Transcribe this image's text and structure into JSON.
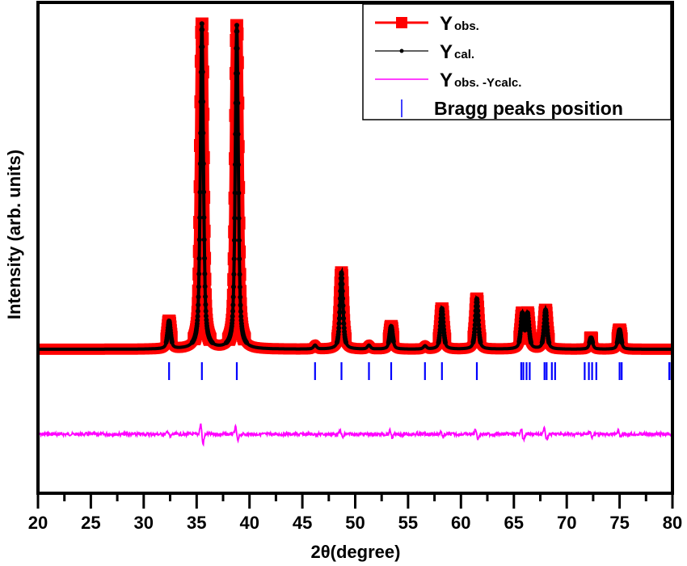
{
  "chart_data": {
    "type": "line",
    "title": "",
    "xlabel": "2θ(degree)",
    "ylabel": "Intensity (arb. units)",
    "xlim": [
      20,
      80
    ],
    "ylim": [
      0,
      1
    ],
    "x_ticks": [
      20,
      25,
      30,
      35,
      40,
      45,
      50,
      55,
      60,
      65,
      70,
      75,
      80
    ],
    "x_tick_labels": [
      "20",
      "25",
      "30",
      "35",
      "40",
      "45",
      "50",
      "55",
      "60",
      "65",
      "70",
      "75",
      "80"
    ],
    "y_ticks_shown": false,
    "grid": false,
    "legend_position": "top-right",
    "legend": [
      {
        "main": "Y",
        "sub": "obs.",
        "color": "#ff0000",
        "marker": "square"
      },
      {
        "main": "Y",
        "sub": "cal.",
        "color": "#000000",
        "marker": "dot"
      },
      {
        "main": "Y",
        "sub": "obs. -Ycalc.",
        "color": "#ff00ff",
        "marker": "none"
      },
      {
        "main": "Bragg peaks position",
        "sub": "",
        "color": "#0000ff",
        "marker": "vline"
      }
    ],
    "peaks": [
      {
        "x": 32.4,
        "height": 0.085
      },
      {
        "x": 35.5,
        "height": 1.0
      },
      {
        "x": 38.8,
        "height": 0.995
      },
      {
        "x": 46.2,
        "height": 0.012
      },
      {
        "x": 48.7,
        "height": 0.235
      },
      {
        "x": 51.3,
        "height": 0.012
      },
      {
        "x": 53.4,
        "height": 0.07
      },
      {
        "x": 56.6,
        "height": 0.01
      },
      {
        "x": 58.2,
        "height": 0.125
      },
      {
        "x": 61.5,
        "height": 0.155
      },
      {
        "x": 65.8,
        "height": 0.105
      },
      {
        "x": 66.3,
        "height": 0.105
      },
      {
        "x": 68.0,
        "height": 0.12
      },
      {
        "x": 72.3,
        "height": 0.035
      },
      {
        "x": 75.0,
        "height": 0.06
      }
    ],
    "bragg_positions": [
      32.4,
      35.5,
      38.8,
      46.2,
      48.7,
      51.3,
      53.4,
      56.6,
      58.2,
      61.5,
      65.7,
      65.9,
      66.2,
      66.5,
      67.9,
      68.1,
      68.6,
      68.9,
      71.7,
      72.1,
      72.4,
      72.8,
      75.0,
      75.2,
      79.7,
      79.9
    ],
    "difference_features": [
      {
        "x": 32.4,
        "amp": 0.3
      },
      {
        "x": 35.5,
        "amp": 1.0
      },
      {
        "x": 38.8,
        "amp": 0.7
      },
      {
        "x": 48.7,
        "amp": 0.35
      },
      {
        "x": 53.4,
        "amp": 0.35
      },
      {
        "x": 58.2,
        "amp": 0.3
      },
      {
        "x": 61.5,
        "amp": 0.5
      },
      {
        "x": 65.8,
        "amp": 0.6
      },
      {
        "x": 68.0,
        "amp": 0.55
      },
      {
        "x": 72.3,
        "amp": 0.3
      },
      {
        "x": 75.0,
        "amp": 0.3
      }
    ]
  }
}
